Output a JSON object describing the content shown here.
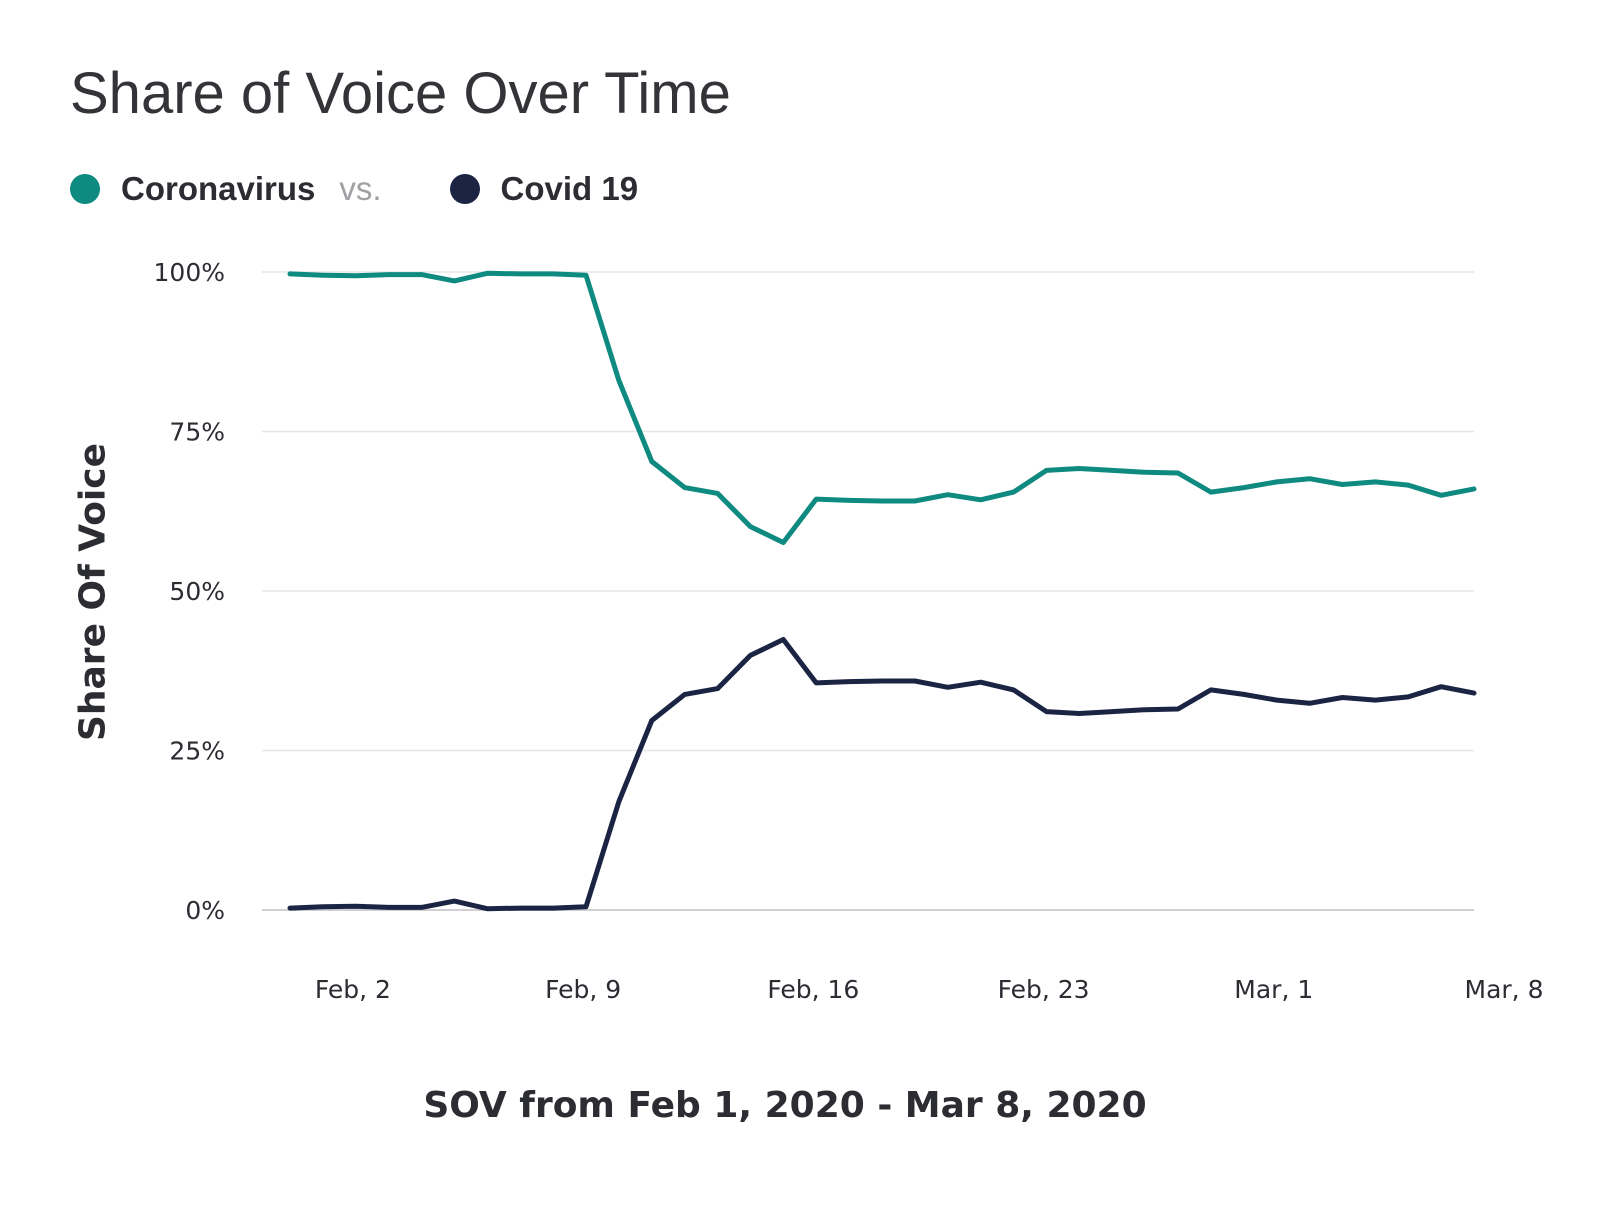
{
  "chart_data": {
    "type": "line",
    "title": "Share of Voice Over Time",
    "xlabel": "SOV from Feb 1, 2020 - Mar 8, 2020",
    "ylabel": "Share Of Voice",
    "ylim": [
      0,
      100
    ],
    "yticks": [
      0,
      25,
      50,
      75,
      100
    ],
    "ytick_labels": [
      "0%",
      "25%",
      "50%",
      "75%",
      "100%"
    ],
    "xticks": [
      {
        "day": 2,
        "label": "Feb, 2"
      },
      {
        "day": 9,
        "label": "Feb, 9"
      },
      {
        "day": 16,
        "label": "Feb, 16"
      },
      {
        "day": 23,
        "label": "Feb, 23"
      },
      {
        "day": 30,
        "label": "Mar, 1"
      },
      {
        "day": 37,
        "label": "Mar, 8"
      }
    ],
    "x": [
      "Feb 1",
      "Feb 2",
      "Feb 3",
      "Feb 4",
      "Feb 5",
      "Feb 6",
      "Feb 7",
      "Feb 8",
      "Feb 9",
      "Feb 10",
      "Feb 11",
      "Feb 12",
      "Feb 13",
      "Feb 14",
      "Feb 15",
      "Feb 16",
      "Feb 17",
      "Feb 18",
      "Feb 19",
      "Feb 20",
      "Feb 21",
      "Feb 22",
      "Feb 23",
      "Feb 24",
      "Feb 25",
      "Feb 26",
      "Feb 27",
      "Feb 28",
      "Feb 29",
      "Mar 1",
      "Mar 2",
      "Mar 3",
      "Mar 4",
      "Mar 5",
      "Mar 6",
      "Mar 7",
      "Mar 8"
    ],
    "x_days": [
      1,
      2,
      3,
      4,
      5,
      6,
      7,
      8,
      9,
      10,
      11,
      12,
      13,
      14,
      15,
      16,
      17,
      18,
      19,
      20,
      21,
      22,
      23,
      24,
      25,
      26,
      27,
      28,
      29,
      30,
      31,
      32,
      33,
      34,
      35,
      36,
      37
    ],
    "legend_connector": "vs.",
    "legend_position": "top-left",
    "grid": true,
    "series": [
      {
        "name": "Coronavirus",
        "color": "#0e8a80",
        "values": [
          99.7,
          99.5,
          99.4,
          99.6,
          99.6,
          98.6,
          99.8,
          99.7,
          99.7,
          99.5,
          83,
          70.3,
          66.2,
          65.3,
          60.1,
          57.6,
          64.4,
          64.2,
          64.1,
          64.1,
          65.1,
          64.3,
          65.5,
          68.9,
          69.2,
          68.9,
          68.6,
          68.5,
          65.5,
          66.2,
          67.1,
          67.6,
          66.7,
          67.1,
          66.6,
          65,
          66
        ]
      },
      {
        "name": "Covid 19",
        "color": "#1c2444",
        "values": [
          0.3,
          0.5,
          0.6,
          0.4,
          0.4,
          1.4,
          0.2,
          0.3,
          0.3,
          0.5,
          17,
          29.7,
          33.8,
          34.7,
          39.9,
          42.4,
          35.6,
          35.8,
          35.9,
          35.9,
          34.9,
          35.7,
          34.5,
          31.1,
          30.8,
          31.1,
          31.4,
          31.5,
          34.5,
          33.8,
          32.9,
          32.4,
          33.3,
          32.9,
          33.4,
          35,
          34
        ]
      }
    ]
  }
}
